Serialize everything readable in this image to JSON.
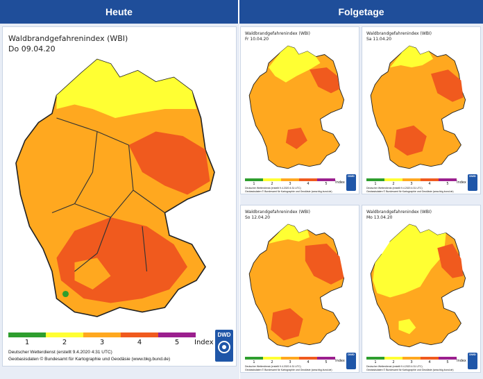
{
  "headers": {
    "left": "Heute",
    "right": "Folgetage"
  },
  "main": {
    "title": "Waldbrandgefahrenindex (WBI)",
    "date": "Do 09.04.20",
    "legend_numbers": [
      "1",
      "2",
      "3",
      "4",
      "5"
    ],
    "legend_unit": "Index",
    "credit1": "Deutscher Wetterdienst (erstellt 9.4.2020 4:31 UTC)",
    "credit2": "Geobasisdaten © Bundesamt für Kartographie und Geodäsie (www.bkg.bund.de)"
  },
  "forecast": [
    {
      "title": "Waldbrandgefahrenindex (WBI)",
      "date": "Fr 10.04.20"
    },
    {
      "title": "Waldbrandgefahrenindex (WBI)",
      "date": "Sa 11.04.20"
    },
    {
      "title": "Waldbrandgefahrenindex (WBI)",
      "date": "So 12.04.20"
    },
    {
      "title": "Waldbrandgefahrenindex (WBI)",
      "date": "Mo 13.04.20"
    }
  ],
  "small_legend_numbers": [
    "1",
    "2",
    "3",
    "4",
    "5"
  ],
  "small_legend_unit": "Index",
  "small_credit1": "Deutscher Wetterdienst (erstellt 9.4.2020 4:31 UTC)",
  "small_credit2": "Geobasisdaten © Bundesamt für Kartographie und Geodäsie (www.bkg.bund.de)",
  "logo_text": "DWD",
  "colors": {
    "header": "#1f4e9a",
    "level1": "#2e9e2e",
    "level2": "#ffff33",
    "level3": "#ffa81f",
    "level4": "#f05a1e",
    "level5": "#9b1f8e"
  }
}
